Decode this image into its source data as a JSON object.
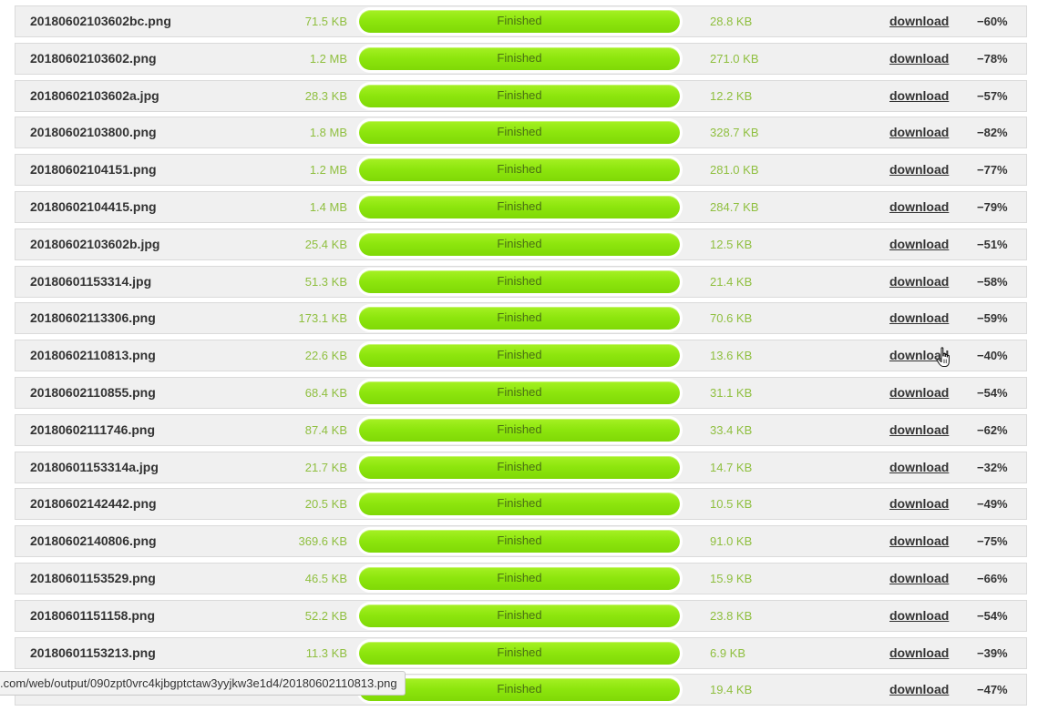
{
  "rows": [
    {
      "name": "20180602103602bc.png",
      "orig": "71.5 KB",
      "status": "Finished",
      "new": "28.8 KB",
      "link": "download",
      "saved": "−60%"
    },
    {
      "name": "20180602103602.png",
      "orig": "1.2 MB",
      "status": "Finished",
      "new": "271.0 KB",
      "link": "download",
      "saved": "−78%"
    },
    {
      "name": "20180602103602a.jpg",
      "orig": "28.3 KB",
      "status": "Finished",
      "new": "12.2 KB",
      "link": "download",
      "saved": "−57%"
    },
    {
      "name": "20180602103800.png",
      "orig": "1.8 MB",
      "status": "Finished",
      "new": "328.7 KB",
      "link": "download",
      "saved": "−82%"
    },
    {
      "name": "20180602104151.png",
      "orig": "1.2 MB",
      "status": "Finished",
      "new": "281.0 KB",
      "link": "download",
      "saved": "−77%"
    },
    {
      "name": "20180602104415.png",
      "orig": "1.4 MB",
      "status": "Finished",
      "new": "284.7 KB",
      "link": "download",
      "saved": "−79%"
    },
    {
      "name": "20180602103602b.jpg",
      "orig": "25.4 KB",
      "status": "Finished",
      "new": "12.5 KB",
      "link": "download",
      "saved": "−51%"
    },
    {
      "name": "20180601153314.jpg",
      "orig": "51.3 KB",
      "status": "Finished",
      "new": "21.4 KB",
      "link": "download",
      "saved": "−58%"
    },
    {
      "name": "20180602113306.png",
      "orig": "173.1 KB",
      "status": "Finished",
      "new": "70.6 KB",
      "link": "download",
      "saved": "−59%"
    },
    {
      "name": "20180602110813.png",
      "orig": "22.6 KB",
      "status": "Finished",
      "new": "13.6 KB",
      "link": "download",
      "saved": "−40%"
    },
    {
      "name": "20180602110855.png",
      "orig": "68.4 KB",
      "status": "Finished",
      "new": "31.1 KB",
      "link": "download",
      "saved": "−54%"
    },
    {
      "name": "20180602111746.png",
      "orig": "87.4 KB",
      "status": "Finished",
      "new": "33.4 KB",
      "link": "download",
      "saved": "−62%"
    },
    {
      "name": "20180601153314a.jpg",
      "orig": "21.7 KB",
      "status": "Finished",
      "new": "14.7 KB",
      "link": "download",
      "saved": "−32%"
    },
    {
      "name": "20180602142442.png",
      "orig": "20.5 KB",
      "status": "Finished",
      "new": "10.5 KB",
      "link": "download",
      "saved": "−49%"
    },
    {
      "name": "20180602140806.png",
      "orig": "369.6 KB",
      "status": "Finished",
      "new": "91.0 KB",
      "link": "download",
      "saved": "−75%"
    },
    {
      "name": "20180601153529.png",
      "orig": "46.5 KB",
      "status": "Finished",
      "new": "15.9 KB",
      "link": "download",
      "saved": "−66%"
    },
    {
      "name": "20180601151158.png",
      "orig": "52.2 KB",
      "status": "Finished",
      "new": "23.8 KB",
      "link": "download",
      "saved": "−54%"
    },
    {
      "name": "20180601153213.png",
      "orig": "11.3 KB",
      "status": "Finished",
      "new": "6.9 KB",
      "link": "download",
      "saved": "−39%"
    },
    {
      "name": "",
      "orig": "",
      "status": "Finished",
      "new": "19.4 KB",
      "link": "download",
      "saved": "−47%"
    }
  ],
  "progress": 1.0,
  "status_url": ".com/web/output/090zpt0vrc4kjbgptctaw3yyjkw3e1d4/20180602110813.png",
  "colors": {
    "accent_green": "#8ee60e",
    "size_text": "#8fbf3f",
    "row_bg": "#f0f0f0"
  },
  "cursor_icon": "hand-pointer-icon"
}
